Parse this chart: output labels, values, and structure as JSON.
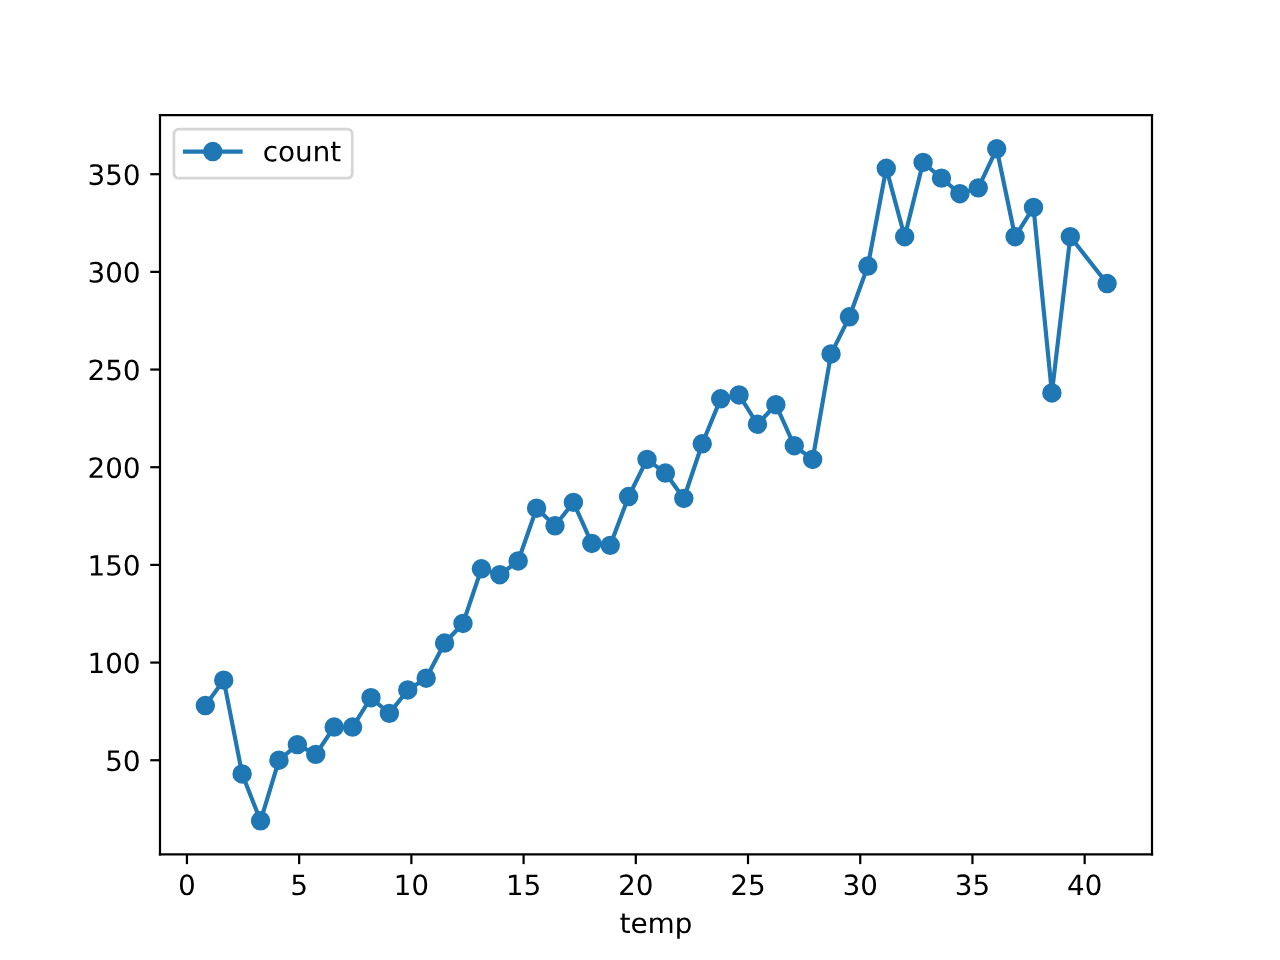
{
  "chart_data": {
    "type": "line",
    "xlabel": "temp",
    "x": [
      0.82,
      1.64,
      2.46,
      3.28,
      4.1,
      4.92,
      5.74,
      6.56,
      7.38,
      8.2,
      9.02,
      9.84,
      10.66,
      11.48,
      12.3,
      13.12,
      13.94,
      14.76,
      15.58,
      16.4,
      17.22,
      18.04,
      18.86,
      19.68,
      20.5,
      21.32,
      22.14,
      22.96,
      23.78,
      24.6,
      25.42,
      26.24,
      27.06,
      27.88,
      28.7,
      29.52,
      30.34,
      31.16,
      31.98,
      32.8,
      33.62,
      34.44,
      35.26,
      36.08,
      36.9,
      37.72,
      38.54,
      39.36,
      41.0
    ],
    "series": [
      {
        "name": "count",
        "color": "#1f77b4",
        "values": [
          78,
          91,
          43,
          19,
          50,
          58,
          53,
          67,
          67,
          82,
          74,
          86,
          92,
          110,
          120,
          148,
          145,
          152,
          179,
          170,
          182,
          161,
          160,
          185,
          204,
          197,
          184,
          212,
          235,
          237,
          222,
          232,
          211,
          204,
          258,
          277,
          303,
          353,
          318,
          356,
          348,
          340,
          343,
          363,
          318,
          333,
          238,
          318,
          294
        ]
      }
    ],
    "xlim": [
      -1.2,
      43.0
    ],
    "ylim": [
      1.8,
      380.2
    ],
    "xticks": [
      0,
      5,
      10,
      15,
      20,
      25,
      30,
      35,
      40
    ],
    "yticks": [
      50,
      100,
      150,
      200,
      250,
      300,
      350
    ],
    "marker": "circle",
    "line_style": "solid",
    "legend": "top left",
    "grid": false
  }
}
